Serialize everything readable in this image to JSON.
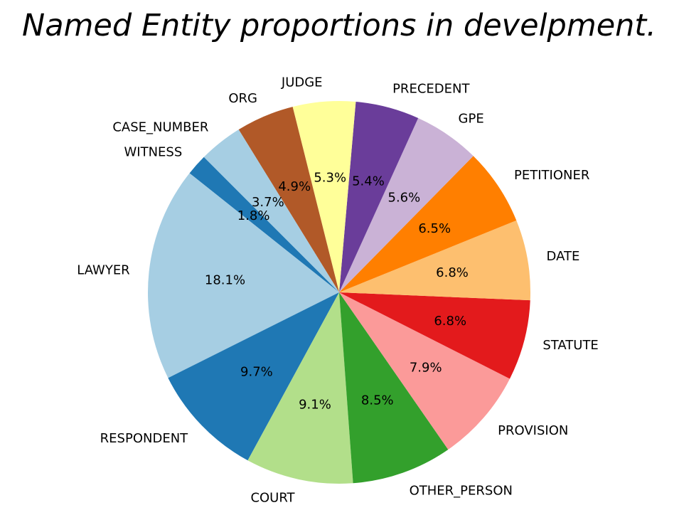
{
  "chart_data": {
    "type": "pie",
    "title": "Named Entity proportions in develpment.",
    "start_angle_deg": 135,
    "direction": "counterclockwise",
    "slices": [
      {
        "label": "WITNESS",
        "value": 1.8,
        "pct_label": "1.8%",
        "color": "#1f78b4"
      },
      {
        "label": "LAWYER",
        "value": 18.1,
        "pct_label": "18.1%",
        "color": "#a6cee3"
      },
      {
        "label": "RESPONDENT",
        "value": 9.7,
        "pct_label": "9.7%",
        "color": "#1f78b4"
      },
      {
        "label": "COURT",
        "value": 9.1,
        "pct_label": "9.1%",
        "color": "#b2df8a"
      },
      {
        "label": "OTHER_PERSON",
        "value": 8.5,
        "pct_label": "8.5%",
        "color": "#33a02c"
      },
      {
        "label": "PROVISION",
        "value": 7.9,
        "pct_label": "7.9%",
        "color": "#fb9a99"
      },
      {
        "label": "STATUTE",
        "value": 6.8,
        "pct_label": "6.8%",
        "color": "#e31a1c"
      },
      {
        "label": "DATE",
        "value": 6.8,
        "pct_label": "6.8%",
        "color": "#fdbf6f"
      },
      {
        "label": "PETITIONER",
        "value": 6.5,
        "pct_label": "6.5%",
        "color": "#ff7f00"
      },
      {
        "label": "GPE",
        "value": 5.6,
        "pct_label": "5.6%",
        "color": "#cab2d6"
      },
      {
        "label": "PRECEDENT",
        "value": 5.4,
        "pct_label": "5.4%",
        "color": "#6a3d9a"
      },
      {
        "label": "JUDGE",
        "value": 5.3,
        "pct_label": "5.3%",
        "color": "#ffff99"
      },
      {
        "label": "ORG",
        "value": 4.9,
        "pct_label": "4.9%",
        "color": "#b15928"
      },
      {
        "label": "CASE_NUMBER",
        "value": 3.7,
        "pct_label": "3.7%",
        "color": "#a6cee3"
      }
    ]
  }
}
